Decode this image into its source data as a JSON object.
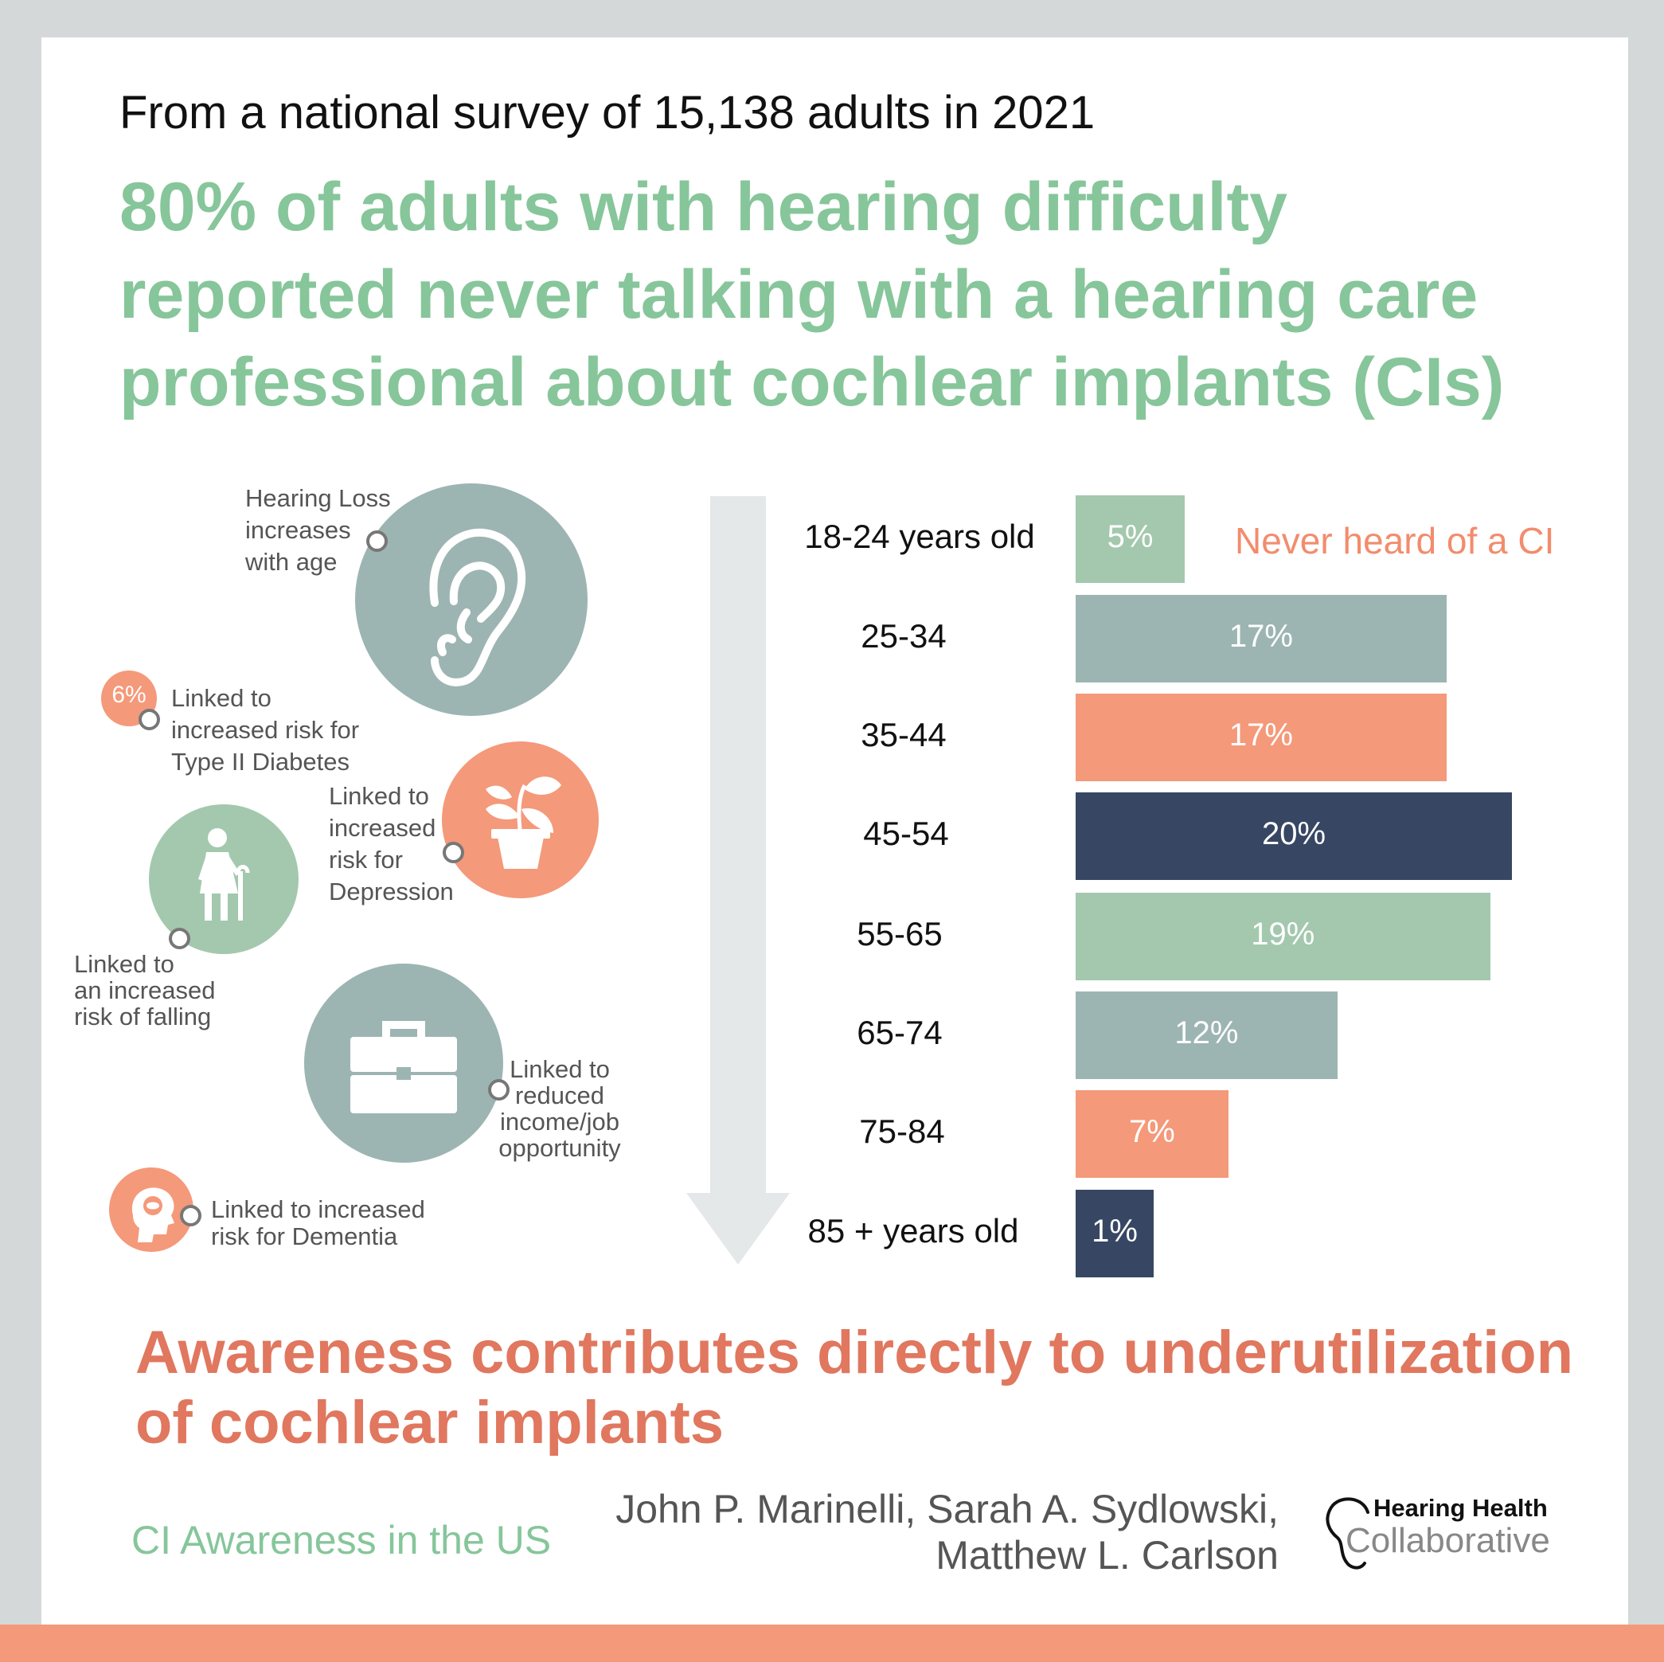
{
  "header": {
    "survey_line": "From a national survey of 15,138 adults in 2021",
    "headline_lines": [
      "80% of adults with hearing difficulty",
      "reported never talking with a hearing care",
      "professional about cochlear implants (CIs)"
    ]
  },
  "risks": {
    "hearing_loss": {
      "lines": [
        "Hearing Loss",
        "increases",
        "with age"
      ],
      "icon": "ear-icon"
    },
    "diabetes": {
      "badge": "6%",
      "lines": [
        "Linked to",
        "increased risk for",
        "Type II Diabetes"
      ]
    },
    "depression": {
      "lines": [
        "Linked to",
        "increased",
        "risk for",
        "Depression"
      ],
      "icon": "wilted-plant-icon"
    },
    "falling": {
      "lines": [
        "Linked to",
        "an increased",
        "risk of falling"
      ],
      "icon": "elderly-person-with-cane-icon"
    },
    "income": {
      "lines": [
        "Linked to",
        "reduced",
        "income/job",
        "opportunity"
      ],
      "icon": "briefcase-icon"
    },
    "dementia": {
      "lines": [
        "Linked to increased",
        "risk for Dementia"
      ],
      "icon": "head-with-brain-icon"
    }
  },
  "chart_data": {
    "type": "bar",
    "orientation": "horizontal",
    "legend": "Never heard of a CI",
    "categories": [
      "18-24 years old",
      "25-34",
      "35-44",
      "45-54",
      "55-65",
      "65-74",
      "75-84",
      "85 + years old"
    ],
    "values": [
      5,
      17,
      17,
      20,
      19,
      12,
      7,
      1
    ],
    "value_labels": [
      "5%",
      "17%",
      "17%",
      "20%",
      "19%",
      "12%",
      "7%",
      "1%"
    ],
    "unit": "%",
    "xlim": [
      0,
      20
    ],
    "colors": [
      "#a3c8ae",
      "#9db5b2",
      "#f4997a",
      "#374763",
      "#a3c8ae",
      "#9db5b2",
      "#f4997a",
      "#374763"
    ]
  },
  "footer": {
    "conclusion_lines": [
      "Awareness contributes directly to underutilization",
      "of cochlear implants"
    ],
    "subtitle": "CI Awareness in the US",
    "authors_lines": [
      "John P. Marinelli, Sarah A. Sydlowski,",
      "Matthew L. Carlson"
    ],
    "logo_line1": "Hearing Health",
    "logo_line2": "Collaborative"
  },
  "colors": {
    "green": "#86c69a",
    "teal_gray": "#9db5b2",
    "salmon": "#f4997a",
    "navy": "#374763",
    "conclusion": "#e0775e"
  }
}
